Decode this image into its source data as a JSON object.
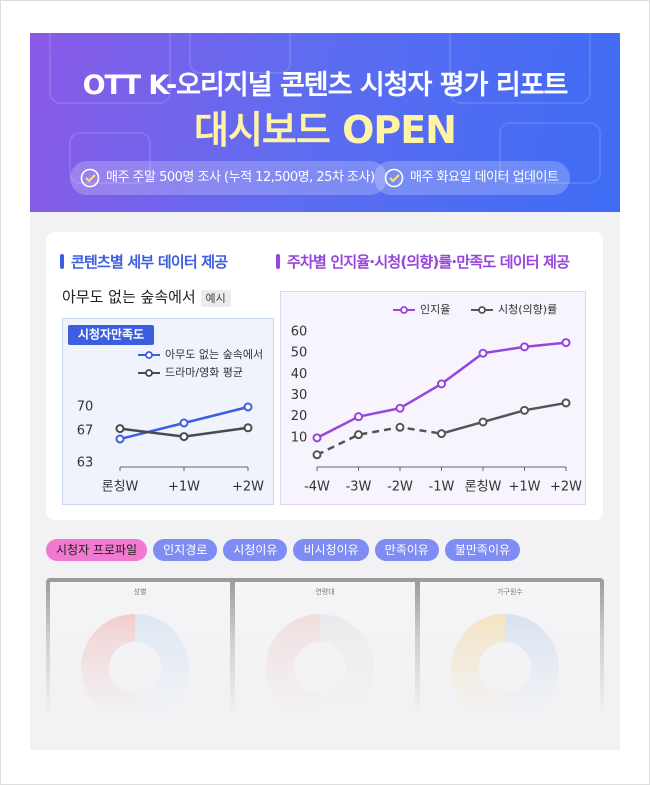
{
  "header": {
    "title": "OTT K-오리지널 콘텐츠 시청자 평가 리포트",
    "subtitle": "대시보드 OPEN",
    "badges": [
      "매주 주말 500명 조사 (누적 12,500명, 25차 조사)",
      "매주 화요일 데이터 업데이트"
    ]
  },
  "left_panel": {
    "heading": "콘텐츠별 세부 데이터 제공",
    "content_title": "아무도 없는 숲속에서",
    "tag": "예시",
    "chart": {
      "type": "line",
      "title": "시청자만족도",
      "categories": [
        "론칭W",
        "+1W",
        "+2W"
      ],
      "series": [
        {
          "name": "아무도 없는 숲속에서",
          "color": "#3d5ee0",
          "values": [
            66,
            68,
            70
          ]
        },
        {
          "name": "드라마/영화 평균",
          "color": "#4a4a4a",
          "values": [
            67.3,
            66.3,
            67.4
          ]
        }
      ],
      "ylim": [
        62.5,
        71
      ],
      "yticks": [
        63,
        67,
        70
      ]
    }
  },
  "right_panel": {
    "heading": "주차별 인지율·시청(의향)률·만족도 데이터 제공",
    "chart": {
      "type": "line",
      "categories": [
        "-4W",
        "-3W",
        "-2W",
        "-1W",
        "론칭W",
        "+1W",
        "+2W"
      ],
      "series": [
        {
          "name": "인지율",
          "color": "#9646dc",
          "values": [
            10,
            20,
            24,
            35.5,
            50,
            53,
            55
          ]
        },
        {
          "name": "시청(의향)률",
          "color": "#555555",
          "values": [
            2,
            11.5,
            15,
            12,
            17.5,
            23,
            26.5
          ]
        }
      ],
      "ylim": [
        0,
        62
      ],
      "yticks": [
        10,
        20,
        30,
        40,
        50,
        60
      ]
    }
  },
  "tabs": [
    "시청자 프로파일",
    "인지경로",
    "시청이유",
    "비시청이유",
    "만족이유",
    "불만족이유"
  ],
  "preview_cards": [
    "성별",
    "연령대",
    "가구원수"
  ]
}
